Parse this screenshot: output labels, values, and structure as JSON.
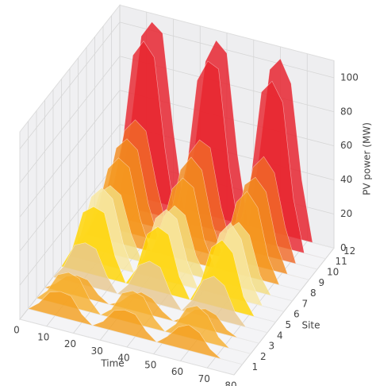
{
  "chart_data": {
    "type": "waterfall3d",
    "xlabel": "Time",
    "ylabel": "Site",
    "zlabel": "PV power (MW)",
    "x": [
      0,
      4,
      8,
      12,
      16,
      20,
      24,
      28,
      32,
      36,
      40,
      44,
      48,
      52,
      56,
      60,
      64,
      68,
      72,
      76,
      80
    ],
    "xlim": [
      0,
      80
    ],
    "xticks": [
      0,
      10,
      20,
      30,
      40,
      50,
      60,
      70,
      80
    ],
    "ylim": [
      0,
      12
    ],
    "yticks": [
      1,
      2,
      3,
      4,
      5,
      6,
      7,
      8,
      9,
      10,
      11,
      12
    ],
    "zlim": [
      0,
      110
    ],
    "zticks": [
      0,
      20,
      40,
      60,
      80,
      100
    ],
    "grid": true,
    "series": [
      {
        "site": 1,
        "color": "#f4a020",
        "values": [
          0,
          5,
          13,
          15,
          14,
          5,
          0,
          4,
          12,
          14,
          13,
          5,
          0,
          5,
          12,
          15,
          12,
          4,
          0,
          0,
          0
        ]
      },
      {
        "site": 2,
        "color": "#f7b030",
        "values": [
          0,
          6,
          17,
          20,
          18,
          7,
          0,
          5,
          16,
          19,
          17,
          6,
          0,
          6,
          17,
          20,
          16,
          5,
          0,
          0,
          0
        ]
      },
      {
        "site": 3,
        "color": "#f5a623",
        "values": [
          0,
          4,
          10,
          12,
          11,
          4,
          0,
          3,
          9,
          12,
          10,
          4,
          0,
          4,
          10,
          12,
          10,
          3,
          0,
          0,
          0
        ]
      },
      {
        "site": 4,
        "color": "#e8c890",
        "values": [
          0,
          8,
          22,
          25,
          23,
          9,
          0,
          7,
          20,
          24,
          22,
          8,
          0,
          8,
          21,
          25,
          21,
          7,
          0,
          0,
          0
        ]
      },
      {
        "site": 5,
        "color": "#ffd400",
        "values": [
          0,
          12,
          35,
          40,
          38,
          14,
          0,
          10,
          32,
          38,
          35,
          12,
          0,
          12,
          34,
          40,
          34,
          10,
          0,
          0,
          0
        ]
      },
      {
        "site": 6,
        "color": "#f8e6a0",
        "values": [
          0,
          14,
          38,
          45,
          40,
          15,
          0,
          12,
          35,
          42,
          38,
          14,
          0,
          14,
          36,
          44,
          36,
          12,
          0,
          0,
          0
        ]
      },
      {
        "site": 7,
        "color": "#f3dd80",
        "values": [
          0,
          12,
          34,
          40,
          36,
          14,
          0,
          10,
          30,
          38,
          34,
          12,
          0,
          12,
          32,
          38,
          32,
          10,
          0,
          0,
          0
        ]
      },
      {
        "site": 8,
        "color": "#f59a20",
        "values": [
          0,
          15,
          42,
          50,
          46,
          18,
          0,
          14,
          40,
          48,
          44,
          15,
          0,
          16,
          42,
          50,
          42,
          14,
          0,
          0,
          0
        ]
      },
      {
        "site": 9,
        "color": "#f28a1e",
        "values": [
          0,
          18,
          48,
          55,
          50,
          20,
          0,
          15,
          45,
          54,
          48,
          18,
          0,
          18,
          46,
          52,
          45,
          16,
          0,
          0,
          0
        ]
      },
      {
        "site": 10,
        "color": "#f06a28",
        "values": [
          0,
          20,
          52,
          60,
          55,
          25,
          0,
          18,
          48,
          58,
          55,
          22,
          0,
          20,
          50,
          58,
          50,
          20,
          0,
          0,
          0
        ]
      },
      {
        "site": 11,
        "color": "#e8262e",
        "values": [
          0,
          35,
          90,
          100,
          92,
          40,
          0,
          30,
          85,
          98,
          95,
          38,
          0,
          35,
          88,
          96,
          85,
          30,
          0,
          0,
          0
        ]
      },
      {
        "site": 12,
        "color": "#e61e2a",
        "values": [
          0,
          40,
          95,
          105,
          100,
          45,
          0,
          38,
          90,
          104,
          98,
          40,
          0,
          42,
          95,
          103,
          90,
          35,
          0,
          0,
          0
        ]
      }
    ]
  }
}
